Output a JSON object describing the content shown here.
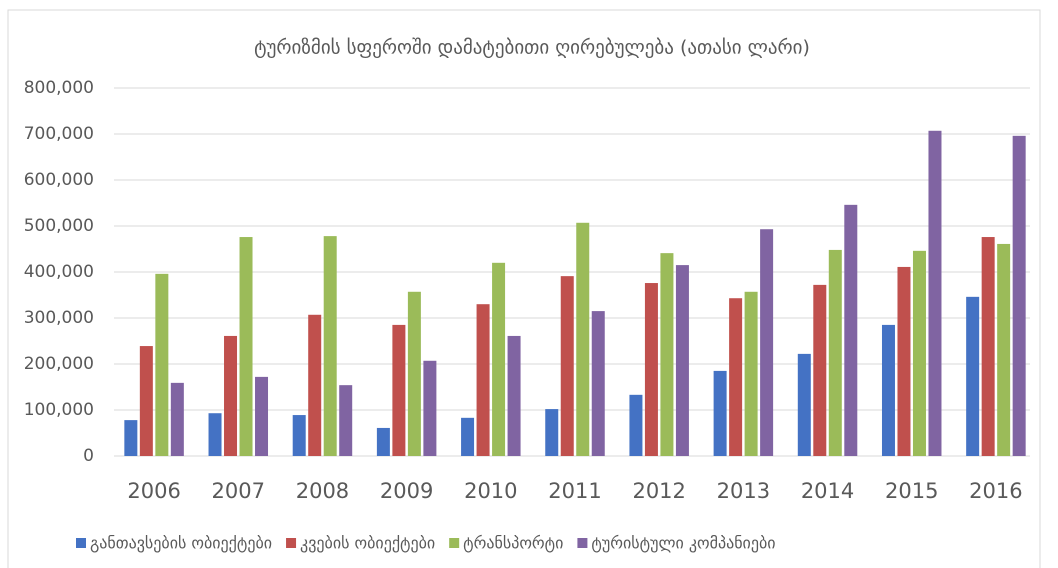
{
  "chart_data": {
    "type": "bar",
    "title": "ტურიზმის სფეროში დამატებითი ღირებულება (ათასი ლარი)",
    "categories": [
      "2006",
      "2007",
      "2008",
      "2009",
      "2010",
      "2011",
      "2012",
      "2013",
      "2014",
      "2015",
      "2016"
    ],
    "series": [
      {
        "name": "განთავსების ობიექტები",
        "color": "#4472c4",
        "values": [
          78000,
          93000,
          89000,
          61000,
          83000,
          102000,
          133000,
          185000,
          222000,
          285000,
          346000
        ]
      },
      {
        "name": "კვების ობიექტები",
        "color": "#c0504d",
        "values": [
          239000,
          261000,
          307000,
          285000,
          330000,
          391000,
          376000,
          343000,
          372000,
          411000,
          476000
        ]
      },
      {
        "name": "ტრანსპორტი",
        "color": "#9bbb59",
        "values": [
          396000,
          476000,
          478000,
          357000,
          420000,
          507000,
          441000,
          357000,
          448000,
          446000,
          461000
        ]
      },
      {
        "name": "ტურისტული კომპანიები",
        "color": "#8064a2",
        "values": [
          159000,
          172000,
          154000,
          207000,
          261000,
          315000,
          415000,
          493000,
          546000,
          707000,
          696000
        ]
      }
    ],
    "ylim": [
      0,
      800000
    ],
    "yticks": [
      0,
      {
        "value": 100000,
        "label": "100,000"
      },
      {
        "value": 200000,
        "label": "200,000"
      },
      {
        "value": 300000,
        "label": "300,000"
      },
      {
        "value": 400000,
        "label": "400,000"
      },
      {
        "value": 500000,
        "label": "500,000"
      },
      {
        "value": 600000,
        "label": "600,000"
      },
      {
        "value": 700000,
        "label": "700,000"
      },
      {
        "value": 800000,
        "label": "800,000"
      }
    ],
    "grid": true,
    "legend": "bottom"
  }
}
